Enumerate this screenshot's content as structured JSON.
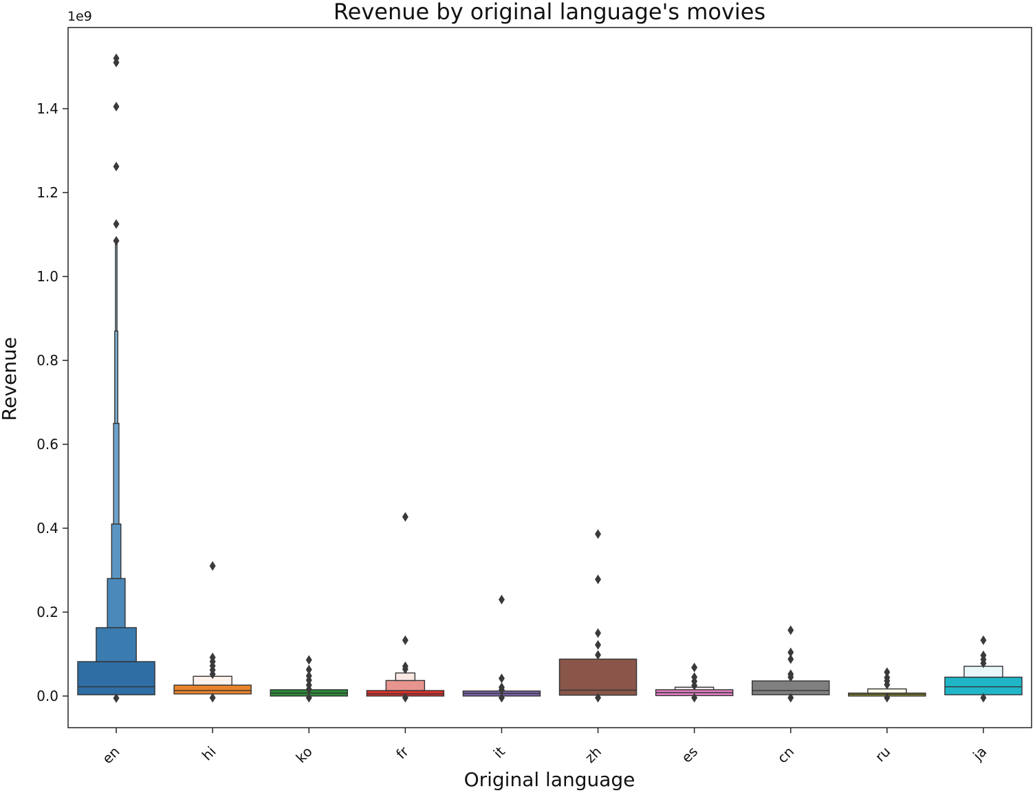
{
  "chart_data": {
    "type": "boxenplot",
    "title": "Revenue by original language's movies",
    "xlabel": "Original language",
    "ylabel": "Revenue",
    "y_offset_label": "1e9",
    "y_scale": 1000000000,
    "ylim": [
      -0.075,
      1.6
    ],
    "y_ticks": [
      0.0,
      0.2,
      0.4,
      0.6,
      0.8,
      1.0,
      1.2,
      1.4
    ],
    "y_tick_labels": [
      "0.0",
      "0.2",
      "0.4",
      "0.6",
      "0.8",
      "1.0",
      "1.2",
      "1.4"
    ],
    "x_tick_rotation": -45,
    "grid": false,
    "legend": "none",
    "categories": [
      "en",
      "hi",
      "ko",
      "fr",
      "it",
      "zh",
      "es",
      "cn",
      "ru",
      "ja"
    ],
    "series": [
      {
        "category": "en",
        "color": "#2f6ea5",
        "median": 0.022,
        "boxes": [
          {
            "low": 0.003,
            "high": 0.082,
            "width": 1.0,
            "shade": "#2f6ea5"
          },
          {
            "low": 0.082,
            "high": 0.163,
            "width": 0.52,
            "shade": "#3a7bb0"
          },
          {
            "low": 0.163,
            "high": 0.28,
            "width": 0.23,
            "shade": "#4a89ba"
          },
          {
            "low": 0.28,
            "high": 0.41,
            "width": 0.12,
            "shade": "#5a95c2"
          },
          {
            "low": 0.41,
            "high": 0.65,
            "width": 0.07,
            "shade": "#6ca2ca"
          },
          {
            "low": 0.65,
            "high": 0.87,
            "width": 0.04,
            "shade": "#80b0d3"
          },
          {
            "low": 0.87,
            "high": 1.08,
            "width": 0.02,
            "shade": "#95bedc"
          }
        ],
        "outliers": [
          1.52,
          1.51,
          1.405,
          1.262,
          1.125,
          1.085,
          -0.005
        ]
      },
      {
        "category": "hi",
        "color": "#e8832b",
        "median": 0.013,
        "boxes": [
          {
            "low": 0.005,
            "high": 0.026,
            "width": 1.0,
            "shade": "#e8832b"
          },
          {
            "low": 0.026,
            "high": 0.047,
            "width": 0.5,
            "shade": "#fdf3ec"
          }
        ],
        "outliers": [
          0.31,
          0.092,
          0.082,
          0.072,
          0.062,
          0.052,
          -0.004
        ]
      },
      {
        "category": "ko",
        "color": "#2e8a3a",
        "median": 0.007,
        "boxes": [
          {
            "low": 0.0,
            "high": 0.015,
            "width": 1.0,
            "shade": "#2e8a3a"
          }
        ],
        "outliers": [
          0.086,
          0.063,
          0.048,
          0.038,
          0.026,
          0.016,
          -0.004
        ]
      },
      {
        "category": "fr",
        "color": "#d9302c",
        "median": 0.005,
        "boxes": [
          {
            "low": 0.0,
            "high": 0.013,
            "width": 1.0,
            "shade": "#d9302c"
          },
          {
            "low": 0.013,
            "high": 0.037,
            "width": 0.5,
            "shade": "#e6958f"
          },
          {
            "low": 0.037,
            "high": 0.055,
            "width": 0.25,
            "shade": "#fae8e4"
          }
        ],
        "outliers": [
          0.427,
          0.133,
          0.071,
          0.064,
          -0.004
        ]
      },
      {
        "category": "it",
        "color": "#7a63a8",
        "median": 0.006,
        "boxes": [
          {
            "low": 0.0,
            "high": 0.012,
            "width": 1.0,
            "shade": "#7a63a8"
          }
        ],
        "outliers": [
          0.23,
          0.042,
          0.021,
          0.015,
          -0.004
        ]
      },
      {
        "category": "zh",
        "color": "#8a564a",
        "median": 0.014,
        "boxes": [
          {
            "low": 0.002,
            "high": 0.088,
            "width": 1.0,
            "shade": "#8a564a"
          }
        ],
        "outliers": [
          0.386,
          0.278,
          0.15,
          0.122,
          0.098,
          -0.004
        ]
      },
      {
        "category": "es",
        "color": "#e37fc4",
        "median": 0.008,
        "boxes": [
          {
            "low": 0.001,
            "high": 0.015,
            "width": 1.0,
            "shade": "#e37fc4"
          },
          {
            "low": 0.015,
            "high": 0.021,
            "width": 0.5,
            "shade": "#fbeaf5"
          }
        ],
        "outliers": [
          0.068,
          0.045,
          0.035,
          0.025,
          -0.004
        ]
      },
      {
        "category": "cn",
        "color": "#7f7f7f",
        "median": 0.013,
        "boxes": [
          {
            "low": 0.003,
            "high": 0.036,
            "width": 1.0,
            "shade": "#7f7f7f"
          }
        ],
        "outliers": [
          0.157,
          0.104,
          0.088,
          0.052,
          0.045,
          -0.004
        ]
      },
      {
        "category": "ru",
        "color": "#a8a832",
        "median": 0.004,
        "boxes": [
          {
            "low": 0.0,
            "high": 0.007,
            "width": 1.0,
            "shade": "#a8a832"
          },
          {
            "low": 0.007,
            "high": 0.017,
            "width": 0.5,
            "shade": "#fbfbea"
          }
        ],
        "outliers": [
          0.057,
          0.044,
          0.036,
          0.027,
          -0.004
        ]
      },
      {
        "category": "ja",
        "color": "#1fb6c8",
        "median": 0.022,
        "boxes": [
          {
            "low": 0.003,
            "high": 0.045,
            "width": 1.0,
            "shade": "#1fb6c8"
          },
          {
            "low": 0.045,
            "high": 0.071,
            "width": 0.5,
            "shade": "#e8f6f9"
          }
        ],
        "outliers": [
          0.133,
          0.097,
          0.087,
          0.078,
          -0.004
        ]
      }
    ]
  }
}
